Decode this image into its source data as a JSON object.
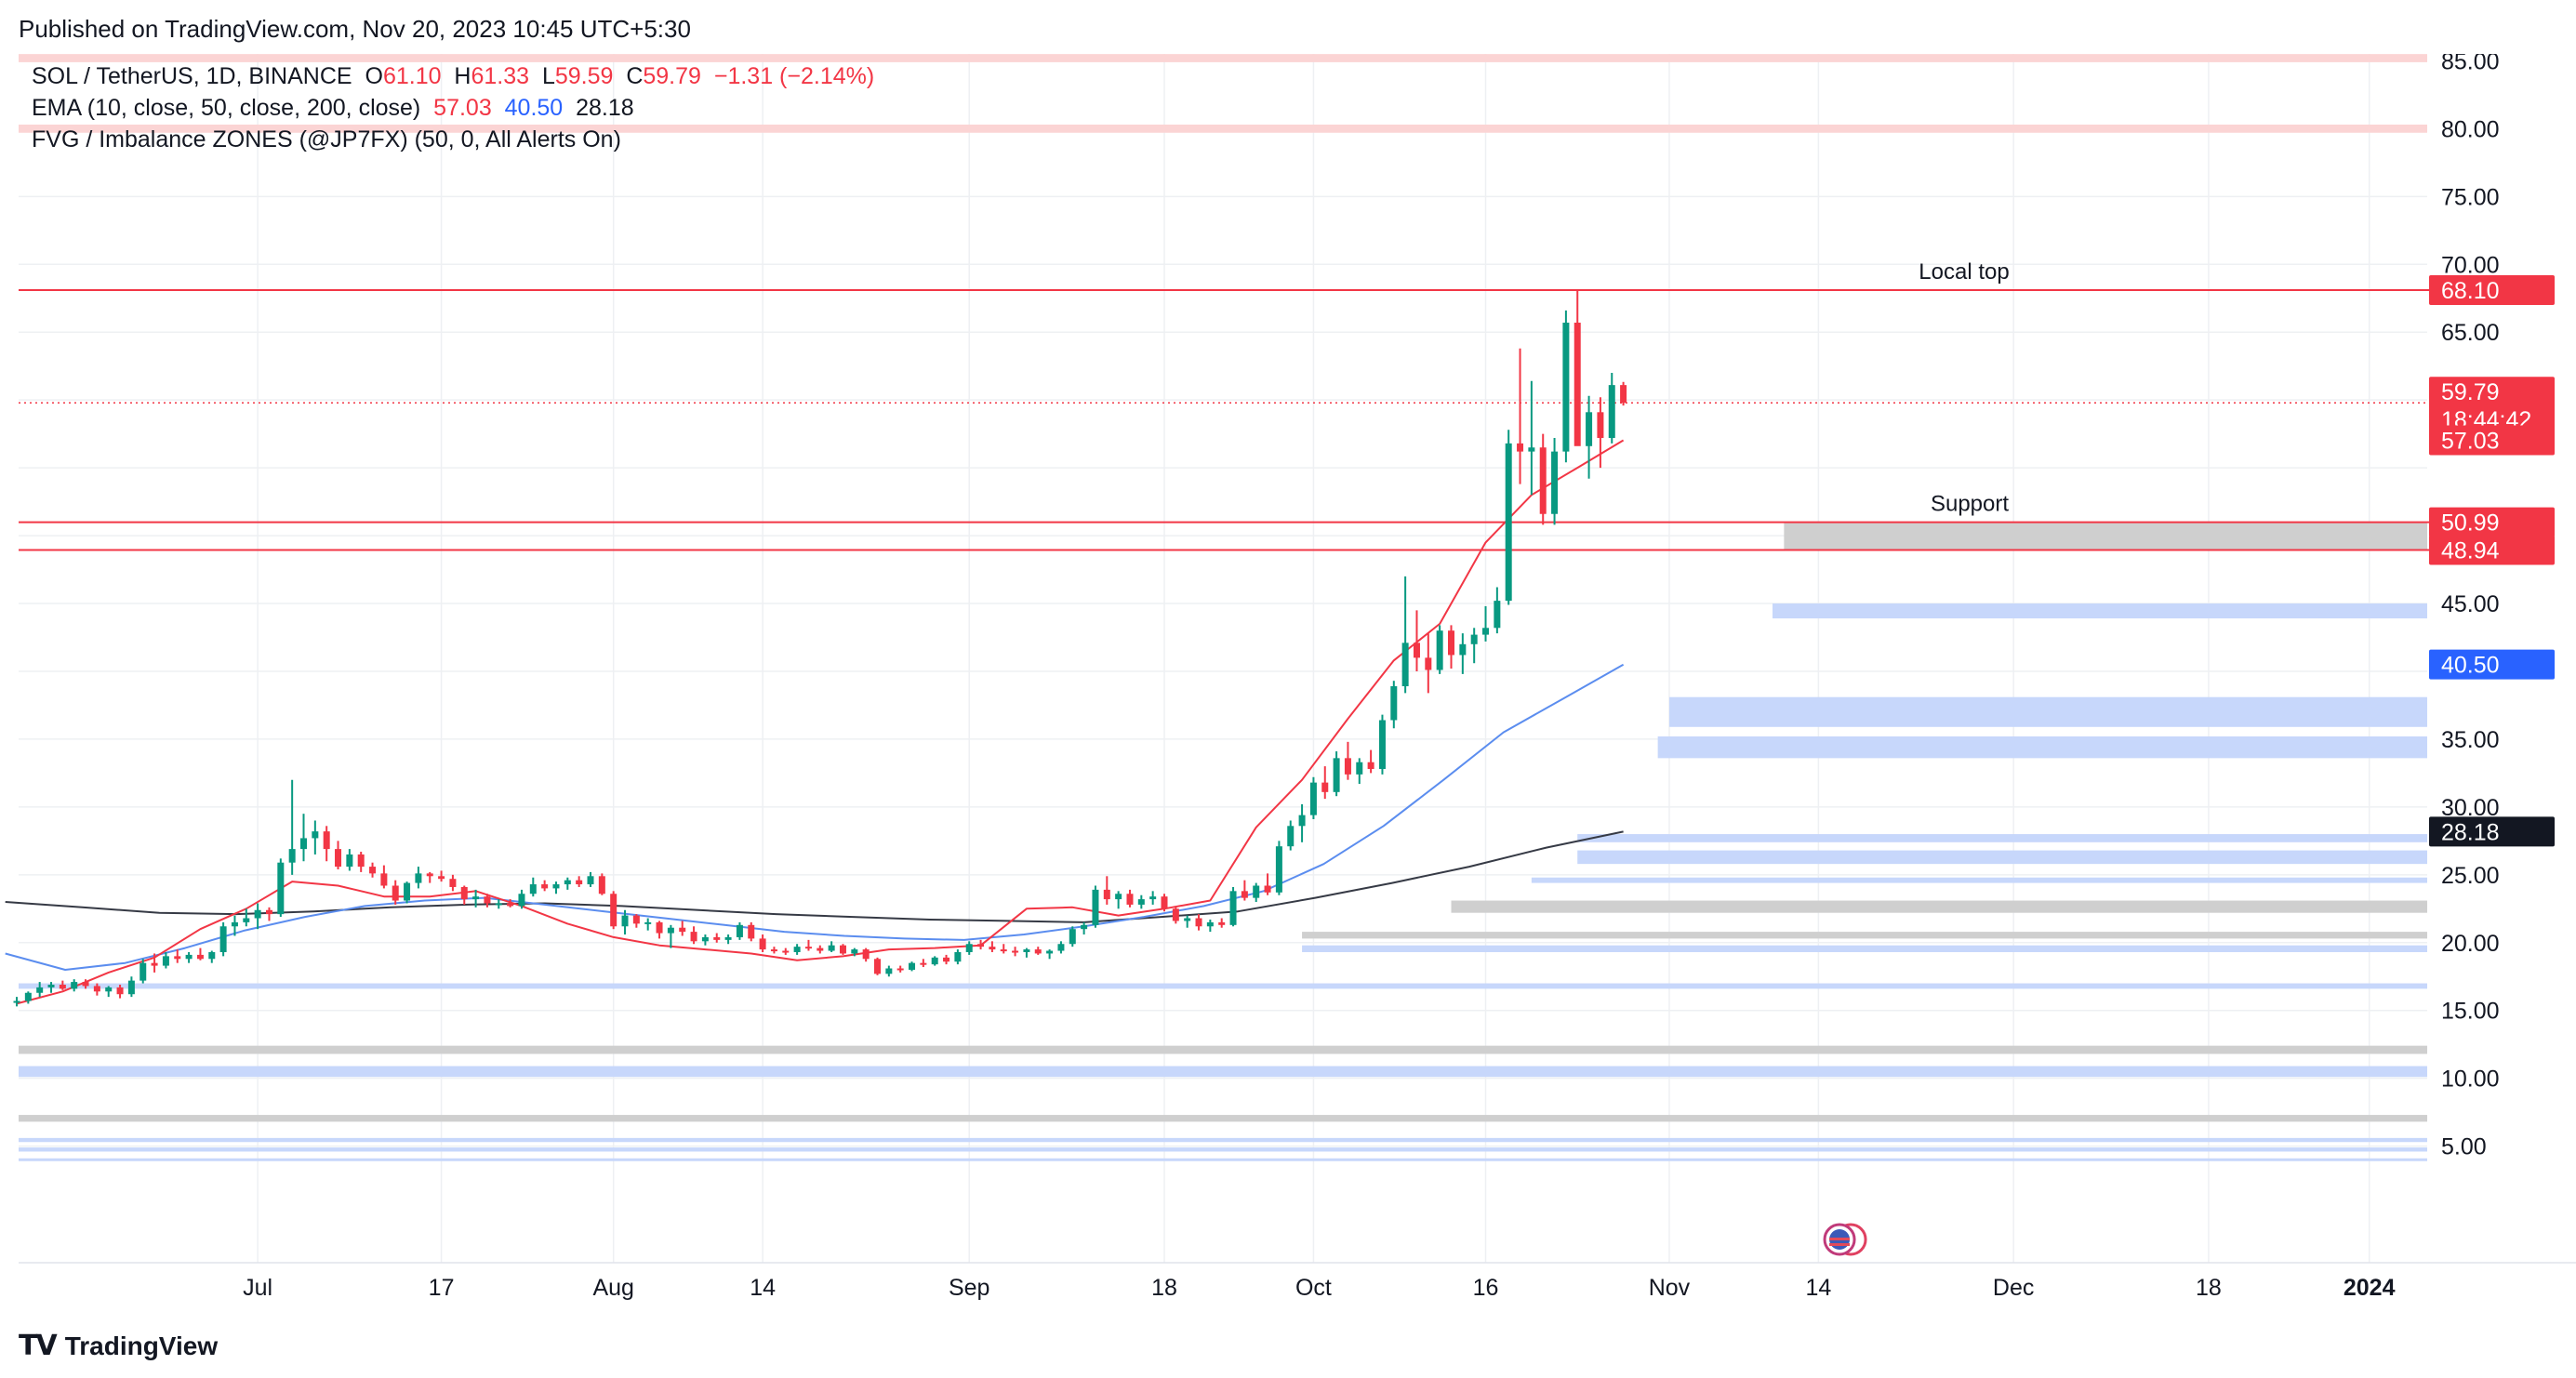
{
  "header": {
    "published": "Published on TradingView.com, Nov 20, 2023 10:45 UTC+5:30"
  },
  "legend": {
    "symbol": "SOL / TetherUS, 1D, BINANCE",
    "o_label": "O",
    "o_value": "61.10",
    "h_label": "H",
    "h_value": "61.33",
    "l_label": "L",
    "l_value": "59.59",
    "c_label": "C",
    "c_value": "59.79",
    "change": "−1.31 (−2.14%)",
    "ema_label": "EMA (10, close, 50, close, 200, close)",
    "ema10": "57.03",
    "ema50": "40.50",
    "ema200": "28.18",
    "fvg_label": "FVG / Imbalance ZONES (@JP7FX) (50, 0, All Alerts On)"
  },
  "footer": {
    "brand": "TradingView",
    "logo_icon": "tradingview-logo-icon"
  },
  "colors": {
    "up": "#089981",
    "down": "#f23645",
    "ema10": "#f23645",
    "ema50": "#5b8def",
    "ema200": "#363a45",
    "fvg_blue": "#c7d7fb",
    "fvg_gray": "#cfcfcf",
    "fvg_pink": "#fbd4d4",
    "grid": "#eef0f3",
    "axis_text": "#131722"
  },
  "chart_data": {
    "type": "candlestick",
    "symbol": "SOL / TetherUS",
    "timeframe": "1D",
    "y_axis_ticks": [
      "85.00",
      "80.00",
      "75.00",
      "70.00",
      "65.00",
      "60.00",
      "55.00",
      "50.00",
      "45.00",
      "40.00",
      "35.00",
      "30.00",
      "25.00",
      "20.00",
      "15.00",
      "10.00",
      "5.00"
    ],
    "y_axis_ticks_shown": [
      "85.00",
      "80.00",
      "75.00",
      "70.00",
      "65.00",
      "45.00",
      "35.00",
      "30.00",
      "25.00",
      "20.00",
      "15.00",
      "10.00",
      "5.00"
    ],
    "ylim": [
      0,
      89
    ],
    "x_axis_labels": [
      {
        "label": "Jul",
        "date": "2023-07-01",
        "bold": false
      },
      {
        "label": "17",
        "date": "2023-07-17",
        "bold": false
      },
      {
        "label": "Aug",
        "date": "2023-08-01",
        "bold": false
      },
      {
        "label": "14",
        "date": "2023-08-14",
        "bold": false
      },
      {
        "label": "Sep",
        "date": "2023-09-01",
        "bold": false
      },
      {
        "label": "18",
        "date": "2023-09-18",
        "bold": false
      },
      {
        "label": "Oct",
        "date": "2023-10-01",
        "bold": false
      },
      {
        "label": "16",
        "date": "2023-10-16",
        "bold": false
      },
      {
        "label": "Nov",
        "date": "2023-11-01",
        "bold": false
      },
      {
        "label": "14",
        "date": "2023-11-14",
        "bold": false
      },
      {
        "label": "Dec",
        "date": "2023-12-01",
        "bold": false
      },
      {
        "label": "18",
        "date": "2023-12-18",
        "bold": false
      },
      {
        "label": "2024",
        "date": "2024-01-01",
        "bold": true
      }
    ],
    "price_tags": [
      {
        "value": 68.1,
        "text": "68.10",
        "color": "#f23645"
      },
      {
        "value": 59.79,
        "text": "59.79",
        "sub": "18:44:42",
        "color": "#f23645"
      },
      {
        "value": 57.03,
        "text": "57.03",
        "color": "#f23645"
      },
      {
        "value": 50.99,
        "text": "50.99",
        "color": "#f23645"
      },
      {
        "value": 48.94,
        "text": "48.94",
        "color": "#f23645"
      },
      {
        "value": 40.5,
        "text": "40.50",
        "color": "#2962ff"
      },
      {
        "value": 28.18,
        "text": "28.18",
        "color": "#131722"
      }
    ],
    "horizontal_lines": [
      {
        "value": 68.1,
        "label": "Local top"
      },
      {
        "value": 50.99,
        "label": "Support"
      },
      {
        "value": 48.94,
        "label": ""
      }
    ],
    "last_price_line": 59.79,
    "zones": [
      {
        "low": 84.9,
        "high": 85.5,
        "color": "pink",
        "start": "2023-06-10"
      },
      {
        "low": 79.7,
        "high": 80.3,
        "color": "pink",
        "start": "2023-06-10"
      },
      {
        "low": 48.94,
        "high": 50.99,
        "color": "gray",
        "start": "2023-11-11"
      },
      {
        "low": 43.9,
        "high": 45.0,
        "color": "blue",
        "start": "2023-11-10"
      },
      {
        "low": 35.9,
        "high": 38.1,
        "color": "blue",
        "start": "2023-11-01"
      },
      {
        "low": 33.6,
        "high": 35.2,
        "color": "blue",
        "start": "2023-10-31"
      },
      {
        "low": 27.4,
        "high": 28.0,
        "color": "blue",
        "start": "2023-10-24"
      },
      {
        "low": 25.8,
        "high": 26.8,
        "color": "blue",
        "start": "2023-10-24"
      },
      {
        "low": 24.4,
        "high": 24.8,
        "color": "blue",
        "start": "2023-10-20"
      },
      {
        "low": 22.2,
        "high": 23.1,
        "color": "gray",
        "start": "2023-10-13"
      },
      {
        "low": 20.3,
        "high": 20.8,
        "color": "gray",
        "start": "2023-09-30"
      },
      {
        "low": 19.3,
        "high": 19.8,
        "color": "blue",
        "start": "2023-09-30"
      },
      {
        "low": 16.6,
        "high": 17.0,
        "color": "blue",
        "start": "2023-06-10"
      },
      {
        "low": 11.8,
        "high": 12.4,
        "color": "gray",
        "start": "2023-06-10"
      },
      {
        "low": 10.1,
        "high": 10.9,
        "color": "blue",
        "start": "2023-06-10"
      },
      {
        "low": 6.8,
        "high": 7.3,
        "color": "gray",
        "start": "2023-06-10"
      },
      {
        "low": 5.3,
        "high": 5.6,
        "color": "blue",
        "start": "2023-06-10"
      },
      {
        "low": 4.6,
        "high": 4.9,
        "color": "blue",
        "start": "2023-06-10"
      },
      {
        "low": 3.9,
        "high": 4.1,
        "color": "blue",
        "start": "2023-06-10"
      }
    ],
    "start_date": "2023-06-10",
    "candles": [
      [
        15.6,
        16.0,
        15.3,
        15.7
      ],
      [
        15.7,
        16.4,
        15.5,
        16.3
      ],
      [
        16.3,
        17.1,
        16.0,
        16.7
      ],
      [
        16.7,
        17.1,
        16.3,
        16.9
      ],
      [
        16.9,
        17.2,
        16.5,
        16.6
      ],
      [
        16.6,
        17.3,
        16.4,
        17.1
      ],
      [
        17.1,
        17.3,
        16.6,
        16.8
      ],
      [
        16.8,
        17.0,
        16.1,
        16.4
      ],
      [
        16.4,
        16.8,
        16.0,
        16.7
      ],
      [
        16.7,
        16.9,
        15.9,
        16.2
      ],
      [
        16.2,
        17.5,
        16.0,
        17.2
      ],
      [
        17.2,
        18.8,
        17.0,
        18.5
      ],
      [
        18.5,
        19.2,
        17.8,
        18.3
      ],
      [
        18.3,
        19.3,
        18.1,
        19.0
      ],
      [
        19.0,
        19.5,
        18.5,
        18.8
      ],
      [
        18.8,
        19.3,
        18.5,
        19.1
      ],
      [
        19.1,
        19.6,
        18.7,
        18.8
      ],
      [
        18.8,
        19.4,
        18.5,
        19.3
      ],
      [
        19.3,
        21.5,
        19.0,
        21.2
      ],
      [
        21.2,
        22.0,
        20.5,
        21.5
      ],
      [
        21.5,
        22.5,
        21.2,
        21.8
      ],
      [
        21.8,
        22.9,
        21.0,
        22.4
      ],
      [
        22.4,
        22.6,
        21.6,
        22.1
      ],
      [
        22.1,
        26.2,
        21.9,
        25.9
      ],
      [
        25.9,
        32.0,
        25.0,
        26.9
      ],
      [
        26.9,
        29.5,
        26.0,
        27.7
      ],
      [
        27.7,
        29.0,
        26.5,
        28.2
      ],
      [
        28.2,
        28.6,
        26.0,
        26.9
      ],
      [
        26.9,
        27.5,
        25.4,
        25.6
      ],
      [
        25.6,
        26.9,
        25.3,
        26.5
      ],
      [
        26.5,
        26.7,
        25.2,
        25.6
      ],
      [
        25.6,
        25.9,
        24.8,
        25.1
      ],
      [
        25.1,
        25.7,
        24.0,
        24.2
      ],
      [
        24.2,
        24.6,
        22.8,
        23.1
      ],
      [
        23.1,
        24.5,
        22.9,
        24.4
      ],
      [
        24.4,
        25.6,
        24.0,
        25.1
      ],
      [
        25.1,
        25.2,
        24.4,
        24.9
      ],
      [
        24.9,
        25.3,
        24.5,
        24.7
      ],
      [
        24.7,
        25.0,
        23.8,
        24.1
      ],
      [
        24.1,
        24.2,
        22.8,
        23.2
      ],
      [
        23.2,
        23.9,
        22.6,
        23.4
      ],
      [
        23.4,
        23.6,
        22.6,
        22.9
      ],
      [
        22.9,
        23.2,
        22.5,
        22.9
      ],
      [
        22.9,
        23.2,
        22.6,
        22.7
      ],
      [
        22.7,
        23.9,
        22.5,
        23.6
      ],
      [
        23.6,
        24.8,
        23.4,
        24.3
      ],
      [
        24.3,
        24.6,
        23.8,
        24.0
      ],
      [
        24.0,
        24.5,
        23.6,
        24.3
      ],
      [
        24.3,
        24.8,
        23.9,
        24.6
      ],
      [
        24.6,
        24.9,
        24.1,
        24.3
      ],
      [
        24.3,
        25.2,
        24.1,
        24.9
      ],
      [
        24.9,
        25.1,
        23.5,
        23.6
      ],
      [
        23.6,
        23.8,
        21.0,
        21.2
      ],
      [
        21.2,
        22.4,
        20.6,
        22.0
      ],
      [
        22.0,
        22.1,
        21.1,
        21.4
      ],
      [
        21.4,
        21.8,
        20.9,
        21.5
      ],
      [
        21.5,
        21.6,
        20.3,
        20.7
      ],
      [
        20.7,
        21.3,
        19.6,
        21.1
      ],
      [
        21.1,
        21.6,
        20.5,
        20.8
      ],
      [
        20.8,
        21.2,
        19.9,
        20.1
      ],
      [
        20.1,
        20.6,
        19.8,
        20.4
      ],
      [
        20.4,
        20.7,
        20.0,
        20.2
      ],
      [
        20.2,
        20.6,
        19.9,
        20.4
      ],
      [
        20.4,
        21.5,
        20.2,
        21.3
      ],
      [
        21.3,
        21.5,
        20.1,
        20.3
      ],
      [
        20.3,
        20.6,
        19.3,
        19.5
      ],
      [
        19.5,
        19.7,
        19.2,
        19.4
      ],
      [
        19.4,
        19.6,
        19.1,
        19.3
      ],
      [
        19.3,
        19.9,
        19.1,
        19.7
      ],
      [
        19.7,
        20.2,
        19.4,
        19.6
      ],
      [
        19.6,
        19.8,
        19.2,
        19.4
      ],
      [
        19.4,
        20.1,
        19.3,
        19.8
      ],
      [
        19.8,
        19.9,
        19.1,
        19.2
      ],
      [
        19.2,
        19.6,
        19.0,
        19.5
      ],
      [
        19.5,
        19.6,
        18.6,
        18.8
      ],
      [
        18.8,
        18.9,
        17.6,
        17.7
      ],
      [
        17.7,
        18.3,
        17.5,
        18.1
      ],
      [
        18.1,
        18.3,
        17.8,
        18.0
      ],
      [
        18.0,
        18.6,
        17.9,
        18.5
      ],
      [
        18.5,
        18.8,
        18.2,
        18.4
      ],
      [
        18.4,
        19.0,
        18.3,
        18.9
      ],
      [
        18.9,
        19.1,
        18.4,
        18.6
      ],
      [
        18.6,
        19.5,
        18.4,
        19.3
      ],
      [
        19.3,
        20.1,
        19.1,
        19.9
      ],
      [
        19.9,
        20.2,
        19.5,
        19.7
      ],
      [
        19.7,
        20.1,
        19.3,
        19.5
      ],
      [
        19.5,
        19.9,
        19.2,
        19.4
      ],
      [
        19.4,
        19.7,
        19.0,
        19.3
      ],
      [
        19.3,
        19.6,
        18.9,
        19.5
      ],
      [
        19.5,
        19.7,
        19.1,
        19.2
      ],
      [
        19.2,
        19.5,
        18.8,
        19.4
      ],
      [
        19.4,
        20.1,
        19.2,
        19.9
      ],
      [
        19.9,
        21.2,
        19.7,
        21.0
      ],
      [
        21.0,
        21.5,
        20.6,
        21.3
      ],
      [
        21.3,
        24.2,
        21.1,
        23.9
      ],
      [
        23.9,
        24.9,
        22.8,
        23.2
      ],
      [
        23.2,
        23.8,
        22.5,
        23.6
      ],
      [
        23.6,
        23.9,
        22.6,
        22.8
      ],
      [
        22.8,
        23.5,
        22.5,
        23.2
      ],
      [
        23.2,
        23.8,
        22.8,
        23.4
      ],
      [
        23.4,
        23.6,
        22.3,
        22.5
      ],
      [
        22.5,
        22.7,
        21.4,
        21.6
      ],
      [
        21.6,
        22.0,
        21.1,
        21.8
      ],
      [
        21.8,
        22.1,
        20.9,
        21.2
      ],
      [
        21.2,
        21.7,
        20.8,
        21.5
      ],
      [
        21.5,
        21.8,
        21.1,
        21.3
      ],
      [
        21.3,
        24.1,
        21.2,
        23.8
      ],
      [
        23.8,
        24.6,
        23.1,
        23.3
      ],
      [
        23.3,
        24.4,
        23.0,
        24.2
      ],
      [
        24.2,
        25.1,
        23.5,
        23.7
      ],
      [
        23.7,
        27.5,
        23.5,
        27.1
      ],
      [
        27.1,
        29.0,
        26.8,
        28.6
      ],
      [
        28.6,
        30.2,
        27.4,
        29.4
      ],
      [
        29.4,
        32.2,
        29.1,
        31.8
      ],
      [
        31.8,
        33.0,
        30.6,
        31.1
      ],
      [
        31.1,
        34.1,
        30.8,
        33.6
      ],
      [
        33.6,
        34.8,
        32.0,
        32.4
      ],
      [
        32.4,
        33.6,
        31.7,
        33.3
      ],
      [
        33.3,
        34.2,
        32.5,
        32.8
      ],
      [
        32.8,
        36.8,
        32.4,
        36.4
      ],
      [
        36.4,
        39.3,
        35.8,
        38.9
      ],
      [
        38.9,
        47.0,
        38.4,
        42.1
      ],
      [
        42.1,
        44.5,
        40.0,
        41.0
      ],
      [
        41.0,
        42.8,
        38.4,
        40.1
      ],
      [
        40.1,
        43.4,
        39.8,
        43.0
      ],
      [
        43.0,
        43.4,
        40.2,
        41.2
      ],
      [
        41.2,
        42.8,
        39.8,
        42.0
      ],
      [
        42.0,
        43.2,
        40.6,
        42.7
      ],
      [
        42.7,
        44.8,
        42.2,
        43.2
      ],
      [
        43.2,
        46.2,
        42.8,
        45.2
      ],
      [
        45.2,
        57.8,
        44.9,
        56.8
      ],
      [
        56.8,
        63.8,
        53.8,
        56.2
      ],
      [
        56.2,
        61.4,
        53.0,
        56.5
      ],
      [
        56.5,
        57.5,
        50.8,
        51.6
      ],
      [
        51.6,
        57.2,
        50.8,
        56.2
      ],
      [
        56.2,
        66.6,
        55.4,
        65.7
      ],
      [
        65.7,
        68.1,
        57.1,
        56.6
      ],
      [
        56.6,
        60.3,
        54.2,
        59.1
      ],
      [
        59.1,
        60.2,
        55.0,
        57.2
      ],
      [
        57.2,
        62.0,
        56.8,
        61.1
      ],
      [
        61.1,
        61.33,
        59.59,
        59.79
      ]
    ],
    "ema10_start": [
      15.5,
      16.4,
      17.8,
      18.9,
      21.0,
      22.5,
      24.5,
      24.2,
      23.4,
      23.4,
      23.8,
      22.7,
      21.4,
      20.4,
      19.8,
      19.5,
      19.2,
      18.7,
      19.0,
      19.5,
      19.6,
      19.8,
      22.5,
      22.6,
      22.0,
      22.5,
      23.1,
      28.5,
      32.0,
      36.5,
      40.8,
      43.5,
      49.5,
      53.0,
      55.0,
      57.03
    ],
    "ema50_start": [
      19.2,
      18.0,
      18.5,
      19.6,
      20.9,
      21.9,
      22.7,
      23.1,
      23.3,
      22.8,
      22.3,
      21.8,
      21.3,
      20.8,
      20.5,
      20.3,
      20.2,
      20.6,
      21.2,
      21.9,
      22.7,
      23.8,
      25.8,
      28.6,
      32.0,
      35.5,
      38.0,
      40.5
    ],
    "ema200_start": [
      23.0,
      22.6,
      22.2,
      22.1,
      22.3,
      22.6,
      22.8,
      22.9,
      22.7,
      22.4,
      22.1,
      21.9,
      21.7,
      21.6,
      21.5,
      21.9,
      22.3,
      23.3,
      24.4,
      25.6,
      27.0,
      28.18
    ]
  }
}
